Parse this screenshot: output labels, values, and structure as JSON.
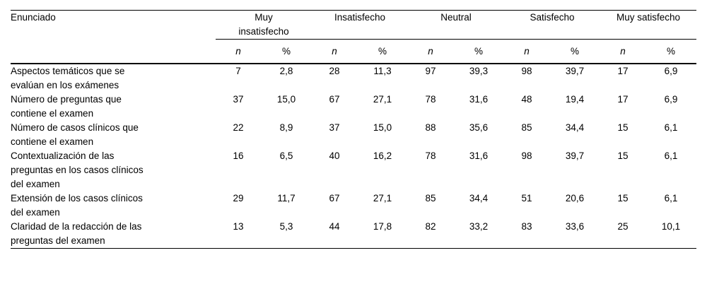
{
  "table": {
    "statement_header": "Enunciado",
    "groups": [
      "Muy\ninsatisfecho",
      "Insatisfecho",
      "Neutral",
      "Satisfecho",
      "Muy satisfecho"
    ],
    "sub_n": "n",
    "sub_pct": "%",
    "rows": [
      {
        "label": "Aspectos temáticos que se\nevalúan en los exámenes",
        "values": [
          "7",
          "2,8",
          "28",
          "11,3",
          "97",
          "39,3",
          "98",
          "39,7",
          "17",
          "6,9"
        ]
      },
      {
        "label": "Número de preguntas que\ncontiene el examen",
        "values": [
          "37",
          "15,0",
          "67",
          "27,1",
          "78",
          "31,6",
          "48",
          "19,4",
          "17",
          "6,9"
        ]
      },
      {
        "label": "Número de casos clínicos que\ncontiene el examen",
        "values": [
          "22",
          "8,9",
          "37",
          "15,0",
          "88",
          "35,6",
          "85",
          "34,4",
          "15",
          "6,1"
        ]
      },
      {
        "label": "Contextualización de las\npreguntas en los casos clínicos\ndel examen",
        "values": [
          "16",
          "6,5",
          "40",
          "16,2",
          "78",
          "31,6",
          "98",
          "39,7",
          "15",
          "6,1"
        ]
      },
      {
        "label": "Extensión de los casos clínicos\ndel examen",
        "values": [
          "29",
          "11,7",
          "67",
          "27,1",
          "85",
          "34,4",
          "51",
          "20,6",
          "15",
          "6,1"
        ]
      },
      {
        "label": "Claridad de la redacción de las\npreguntas del examen",
        "values": [
          "13",
          "5,3",
          "44",
          "17,8",
          "82",
          "33,2",
          "83",
          "33,6",
          "25",
          "10,1"
        ]
      }
    ]
  }
}
